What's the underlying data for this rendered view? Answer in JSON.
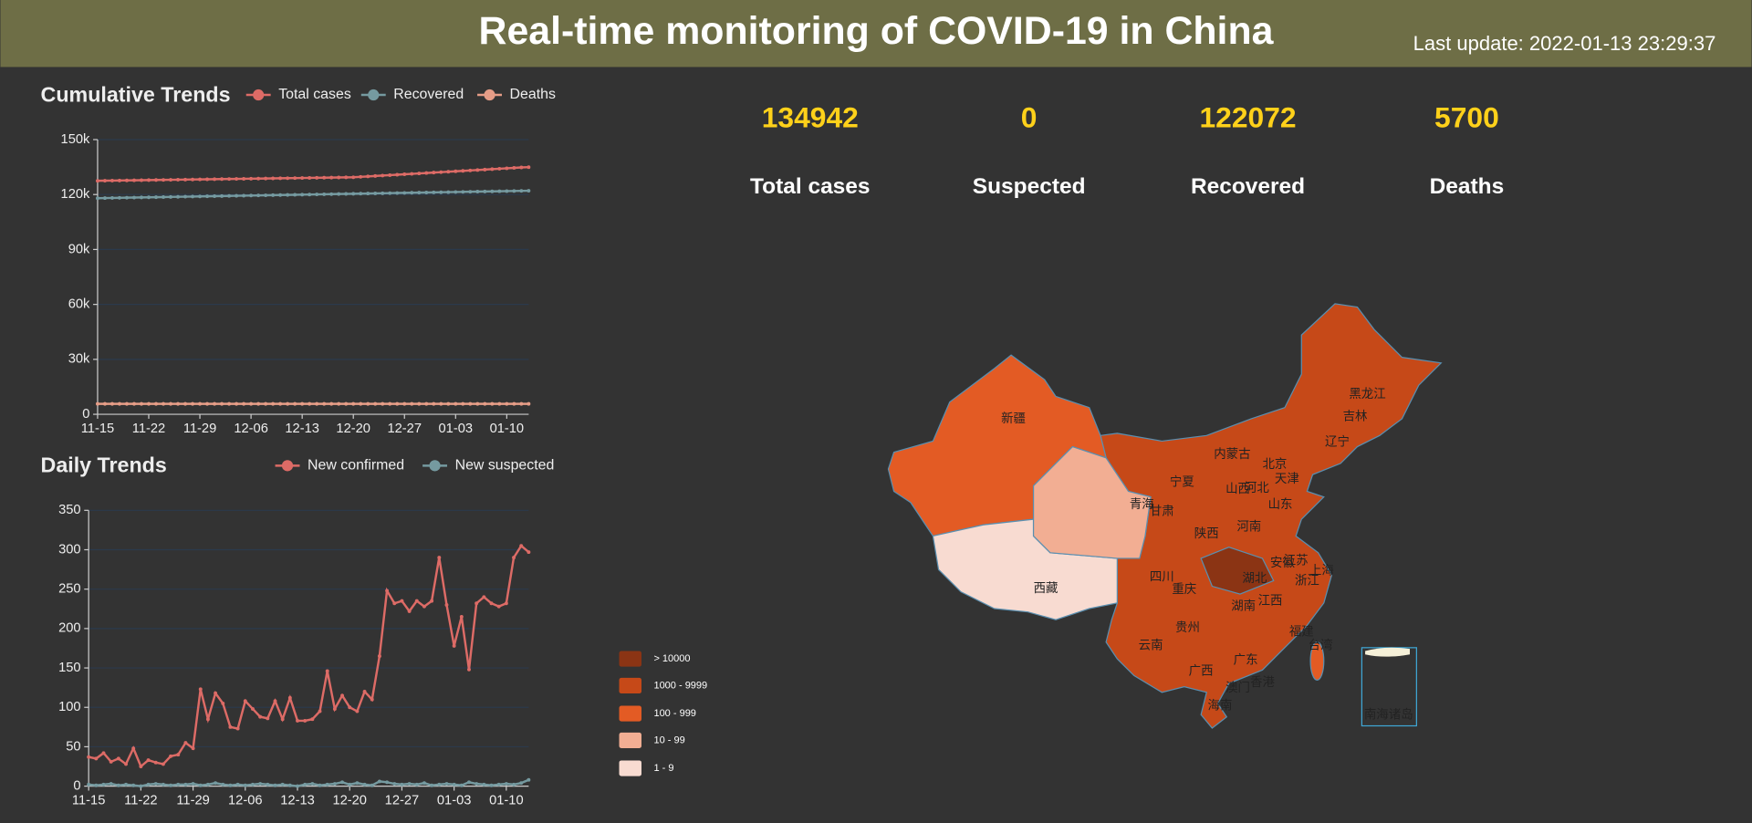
{
  "header": {
    "title": "Real-time monitoring of COVID-19 in China",
    "last_update": "Last update: 2022-01-13 23:29:37"
  },
  "stats": [
    {
      "value": 134942,
      "label": "Total cases"
    },
    {
      "value": 0,
      "label": "Suspected"
    },
    {
      "value": 122072,
      "label": "Recovered"
    },
    {
      "value": 5700,
      "label": "Deaths"
    }
  ],
  "chart_data": [
    {
      "type": "line",
      "title": "Cumulative Trends",
      "categories": [
        "11-15",
        null,
        null,
        null,
        null,
        null,
        null,
        "11-22",
        null,
        null,
        null,
        null,
        null,
        null,
        "11-29",
        null,
        null,
        null,
        null,
        null,
        null,
        "12-06",
        null,
        null,
        null,
        null,
        null,
        null,
        "12-13",
        null,
        null,
        null,
        null,
        null,
        null,
        "12-20",
        null,
        null,
        null,
        null,
        null,
        null,
        "12-27",
        null,
        null,
        null,
        null,
        null,
        null,
        "01-03",
        null,
        null,
        null,
        null,
        null,
        null,
        "01-10",
        null,
        null,
        null
      ],
      "series": [
        {
          "name": "Total cases",
          "color": "#dd6b66",
          "values": [
            127500,
            127555,
            127610,
            127665,
            127720,
            127775,
            127830,
            127885,
            127940,
            127995,
            128050,
            128105,
            128160,
            128215,
            128270,
            128325,
            128380,
            128435,
            128490,
            128545,
            128600,
            128655,
            128710,
            128765,
            128820,
            128875,
            128930,
            128985,
            129040,
            129095,
            129150,
            129205,
            129260,
            129315,
            129370,
            129425,
            129660,
            129890,
            130120,
            130360,
            130590,
            130820,
            131060,
            131290,
            131520,
            131760,
            131990,
            132220,
            132460,
            132690,
            132920,
            133160,
            133390,
            133620,
            133860,
            134090,
            134320,
            134560,
            134790,
            134942
          ]
        },
        {
          "name": "Recovered",
          "color": "#759aa0",
          "values": [
            118000,
            118069,
            118138,
            118207,
            118276,
            118345,
            118414,
            118483,
            118552,
            118621,
            118690,
            118759,
            118828,
            118897,
            118966,
            119035,
            119104,
            119173,
            119242,
            119311,
            119380,
            119449,
            119518,
            119587,
            119656,
            119725,
            119794,
            119863,
            119932,
            120001,
            120070,
            120139,
            120208,
            120277,
            120346,
            120415,
            120484,
            120553,
            120622,
            120691,
            120760,
            120829,
            120898,
            120967,
            121036,
            121105,
            121174,
            121243,
            121312,
            121381,
            121450,
            121519,
            121588,
            121657,
            121726,
            121795,
            121864,
            121933,
            122002,
            122072
          ]
        },
        {
          "name": "Deaths",
          "color": "#e69d87",
          "values": [
            5697,
            5697,
            5697,
            5697,
            5697,
            5697,
            5697,
            5697,
            5697,
            5697,
            5697,
            5697,
            5697,
            5697,
            5697,
            5697,
            5697,
            5697,
            5697,
            5697,
            5697,
            5697,
            5697,
            5697,
            5697,
            5697,
            5697,
            5697,
            5697,
            5697,
            5697,
            5697,
            5697,
            5697,
            5697,
            5697,
            5697,
            5697,
            5697,
            5697,
            5697,
            5697,
            5697,
            5697,
            5697,
            5698,
            5698,
            5698,
            5698,
            5698,
            5699,
            5699,
            5699,
            5699,
            5699,
            5700,
            5700,
            5700,
            5700,
            5700
          ]
        }
      ],
      "ylim": [
        0,
        150000
      ],
      "yticks": [
        0,
        {
          "value": 30000,
          "label": "30k"
        },
        {
          "value": 60000,
          "label": "60k"
        },
        {
          "value": 90000,
          "label": "90k"
        },
        {
          "value": 120000,
          "label": "120k"
        },
        {
          "value": 150000,
          "label": "150k"
        }
      ],
      "grid": true
    },
    {
      "type": "line",
      "title": "Daily Trends",
      "categories": [
        "11-15",
        null,
        null,
        null,
        null,
        null,
        null,
        "11-22",
        null,
        null,
        null,
        null,
        null,
        null,
        "11-29",
        null,
        null,
        null,
        null,
        null,
        null,
        "12-06",
        null,
        null,
        null,
        null,
        null,
        null,
        "12-13",
        null,
        null,
        null,
        null,
        null,
        null,
        "12-20",
        null,
        null,
        null,
        null,
        null,
        null,
        "12-27",
        null,
        null,
        null,
        null,
        null,
        null,
        "01-03",
        null,
        null,
        null,
        null,
        null,
        null,
        "01-10",
        null,
        null,
        null
      ],
      "series": [
        {
          "name": "New confirmed",
          "color": "#dd6b66",
          "values": [
            37,
            35,
            42,
            31,
            35,
            28,
            48,
            25,
            33,
            30,
            28,
            38,
            40,
            55,
            48,
            123,
            85,
            118,
            105,
            75,
            73,
            108,
            98,
            88,
            86,
            108,
            85,
            112,
            83,
            83,
            85,
            95,
            146,
            98,
            115,
            100,
            95,
            120,
            110,
            165,
            248,
            232,
            235,
            222,
            235,
            228,
            235,
            290,
            230,
            178,
            215,
            148,
            232,
            240,
            232,
            228,
            232,
            290,
            305,
            297
          ]
        },
        {
          "name": "New suspected",
          "color": "#759aa0",
          "values": [
            2,
            1,
            2,
            3,
            1,
            2,
            1,
            0,
            2,
            3,
            2,
            1,
            2,
            2,
            3,
            1,
            2,
            4,
            2,
            1,
            2,
            1,
            2,
            3,
            2,
            1,
            2,
            1,
            0,
            2,
            3,
            1,
            2,
            3,
            5,
            2,
            4,
            2,
            1,
            6,
            5,
            3,
            2,
            3,
            2,
            4,
            1,
            2,
            3,
            2,
            1,
            5,
            3,
            2,
            1,
            2,
            3,
            2,
            4,
            8
          ]
        }
      ],
      "ylim": [
        0,
        350
      ],
      "yticks": [
        0,
        50,
        100,
        150,
        200,
        250,
        300,
        350
      ],
      "grid": true
    }
  ],
  "map": {
    "base_color": "#c64918",
    "legend": [
      {
        "label": "> 10000",
        "color": "#8b3414"
      },
      {
        "label": "1000 - 9999",
        "color": "#c64918"
      },
      {
        "label": "100 - 999",
        "color": "#e35b24"
      },
      {
        "label": "10 - 99",
        "color": "#f2ae93"
      },
      {
        "label": "1 - 9",
        "color": "#f8dbd1"
      }
    ],
    "regions": [
      {
        "name": "新疆",
        "color": "#e35b24"
      },
      {
        "name": "西藏",
        "color": "#f8dbd1"
      },
      {
        "name": "青海",
        "color": "#f2ae93"
      },
      {
        "name": "湖北",
        "color": "#8b3414"
      },
      {
        "name": "台湾",
        "color": "#e35b24"
      }
    ],
    "labels": [
      "甘肃",
      "宁夏",
      "内蒙古",
      "黑龙江",
      "吉林",
      "辽宁",
      "北京",
      "天津",
      "河北",
      "山西",
      "山东",
      "河南",
      "陕西",
      "江苏",
      "安徽",
      "上海",
      "浙江",
      "四川",
      "重庆",
      "湖南",
      "江西",
      "贵州",
      "云南",
      "广西",
      "广东",
      "福建",
      "香港",
      "澳门",
      "海南",
      "南海诸岛"
    ]
  }
}
